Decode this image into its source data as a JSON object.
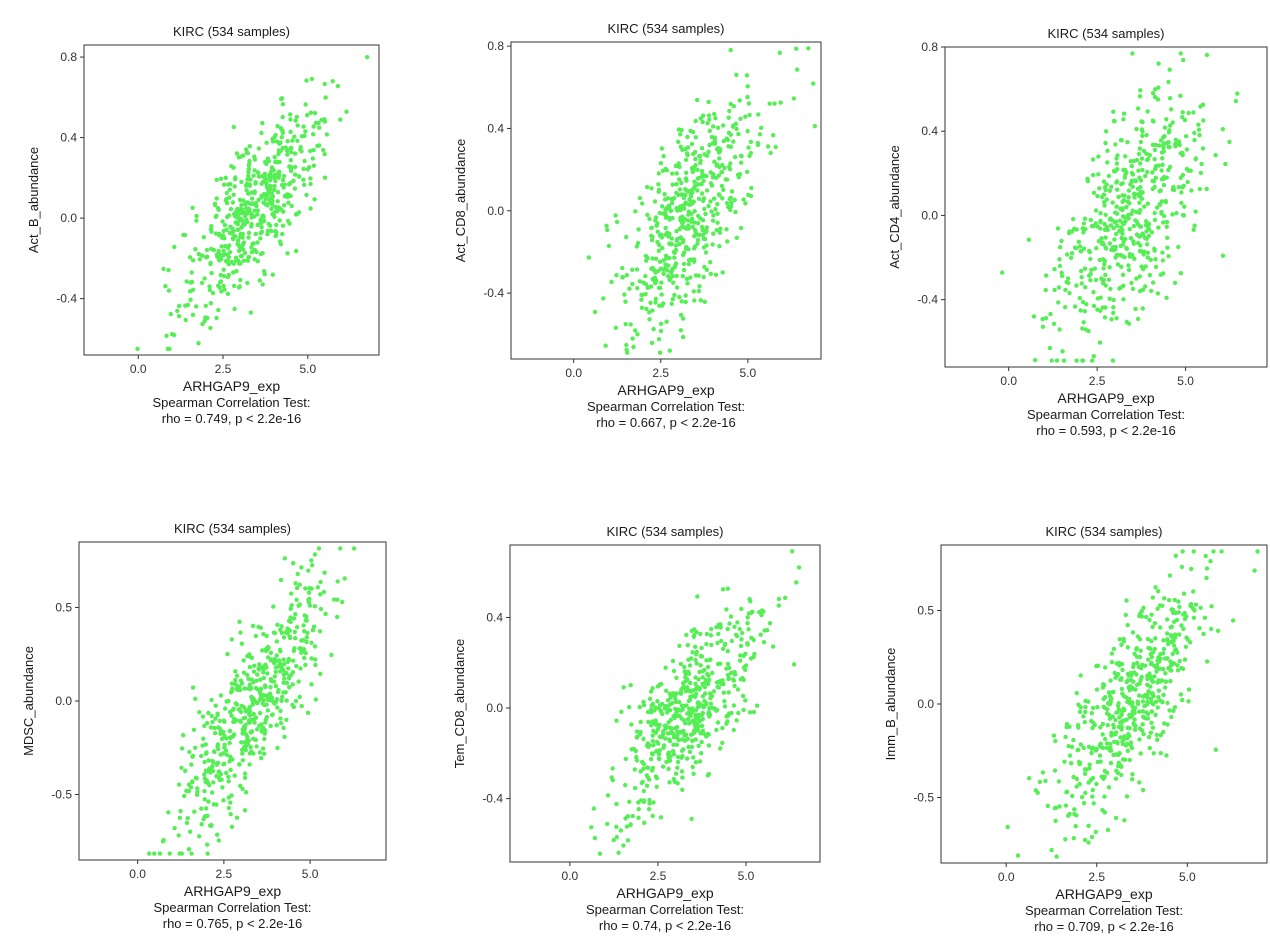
{
  "point_color": "#55ee55",
  "chart_data": [
    {
      "type": "scatter",
      "title": "KIRC (534 samples)",
      "xlabel": "ARHGAP9_exp",
      "ylabel": "Act_B_abundance",
      "test": "Spearman Correlation Test:",
      "stat": "rho = 0.749, p < 2.2e-16",
      "rho": 0.749,
      "n_points": 534,
      "xlim": [
        -1.6,
        7.1
      ],
      "ylim": [
        -0.68,
        0.86
      ],
      "xticks": [
        0.0,
        2.5,
        5.0
      ],
      "xtick_labels": [
        "0.0",
        "2.5",
        "5.0"
      ],
      "yticks": [
        -0.4,
        0.0,
        0.4,
        0.8
      ],
      "ytick_labels": [
        "-0.4",
        "0.0",
        "0.4",
        "0.8"
      ],
      "trend": {
        "x_center": 3.4,
        "x_sd": 1.05,
        "y_at_center": 0.05,
        "slope": 0.19,
        "noise_sd": 0.17
      }
    },
    {
      "type": "scatter",
      "title": "KIRC (534 samples)",
      "xlabel": "ARHGAP9_exp",
      "ylabel": "Act_CD8_abundance",
      "test": "Spearman Correlation Test:",
      "stat": "rho = 0.667, p < 2.2e-16",
      "rho": 0.667,
      "n_points": 534,
      "xlim": [
        -1.8,
        7.1
      ],
      "ylim": [
        -0.72,
        0.82
      ],
      "xticks": [
        0.0,
        2.5,
        5.0
      ],
      "xtick_labels": [
        "0.0",
        "2.5",
        "5.0"
      ],
      "yticks": [
        -0.4,
        0.0,
        0.4,
        0.8
      ],
      "ytick_labels": [
        "-0.4",
        "0.0",
        "0.4",
        "0.8"
      ],
      "trend": {
        "x_center": 3.4,
        "x_sd": 1.05,
        "y_at_center": 0.0,
        "slope": 0.18,
        "noise_sd": 0.22
      }
    },
    {
      "type": "scatter",
      "title": "KIRC (534 samples)",
      "xlabel": "ARHGAP9_exp",
      "ylabel": "Act_CD4_abundance",
      "test": "Spearman Correlation Test:",
      "stat": "rho = 0.593, p < 2.2e-16",
      "rho": 0.593,
      "n_points": 534,
      "xlim": [
        -1.8,
        7.3
      ],
      "ylim": [
        -0.72,
        0.8
      ],
      "xticks": [
        0.0,
        2.5,
        5.0
      ],
      "xtick_labels": [
        "0.0",
        "2.5",
        "5.0"
      ],
      "yticks": [
        -0.4,
        0.0,
        0.4,
        0.8
      ],
      "ytick_labels": [
        "-0.4",
        "0.0",
        "0.4",
        "0.8"
      ],
      "trend": {
        "x_center": 3.4,
        "x_sd": 1.05,
        "y_at_center": 0.0,
        "slope": 0.17,
        "noise_sd": 0.25
      }
    },
    {
      "type": "scatter",
      "title": "KIRC (534 samples)",
      "xlabel": "ARHGAP9_exp",
      "ylabel": "MDSC_abundance",
      "test": "Spearman Correlation Test:",
      "stat": "rho = 0.765, p < 2.2e-16",
      "rho": 0.765,
      "n_points": 534,
      "xlim": [
        -1.7,
        7.2
      ],
      "ylim": [
        -0.85,
        0.85
      ],
      "xticks": [
        0.0,
        2.5,
        5.0
      ],
      "xtick_labels": [
        "0.0",
        "2.5",
        "5.0"
      ],
      "yticks": [
        -0.5,
        0.0,
        0.5
      ],
      "ytick_labels": [
        "-0.5",
        "0.0",
        "0.5"
      ],
      "trend": {
        "x_center": 3.4,
        "x_sd": 1.05,
        "y_at_center": 0.0,
        "slope": 0.25,
        "noise_sd": 0.2
      }
    },
    {
      "type": "scatter",
      "title": "KIRC (534 samples)",
      "xlabel": "ARHGAP9_exp",
      "ylabel": "Tem_CD8_abundance",
      "test": "Spearman Correlation Test:",
      "stat": "rho = 0.74, p < 2.2e-16",
      "rho": 0.74,
      "n_points": 534,
      "xlim": [
        -1.7,
        7.1
      ],
      "ylim": [
        -0.68,
        0.72
      ],
      "xticks": [
        0.0,
        2.5,
        5.0
      ],
      "xtick_labels": [
        "0.0",
        "2.5",
        "5.0"
      ],
      "yticks": [
        -0.4,
        0.0,
        0.4
      ],
      "ytick_labels": [
        "-0.4",
        "0.0",
        "0.4"
      ],
      "trend": {
        "x_center": 3.4,
        "x_sd": 1.05,
        "y_at_center": 0.0,
        "slope": 0.17,
        "noise_sd": 0.16
      }
    },
    {
      "type": "scatter",
      "title": "KIRC (534 samples)",
      "xlabel": "ARHGAP9_exp",
      "ylabel": "Imm_B_abundance",
      "test": "Spearman Correlation Test:",
      "stat": "rho = 0.709, p < 2.2e-16",
      "rho": 0.709,
      "n_points": 534,
      "xlim": [
        -1.8,
        7.2
      ],
      "ylim": [
        -0.85,
        0.85
      ],
      "xticks": [
        0.0,
        2.5,
        5.0
      ],
      "xtick_labels": [
        "0.0",
        "2.5",
        "5.0"
      ],
      "yticks": [
        -0.5,
        0.0,
        0.5
      ],
      "ytick_labels": [
        "-0.5",
        "0.0",
        "0.5"
      ],
      "trend": {
        "x_center": 3.4,
        "x_sd": 1.05,
        "y_at_center": 0.0,
        "slope": 0.23,
        "noise_sd": 0.22
      }
    }
  ]
}
